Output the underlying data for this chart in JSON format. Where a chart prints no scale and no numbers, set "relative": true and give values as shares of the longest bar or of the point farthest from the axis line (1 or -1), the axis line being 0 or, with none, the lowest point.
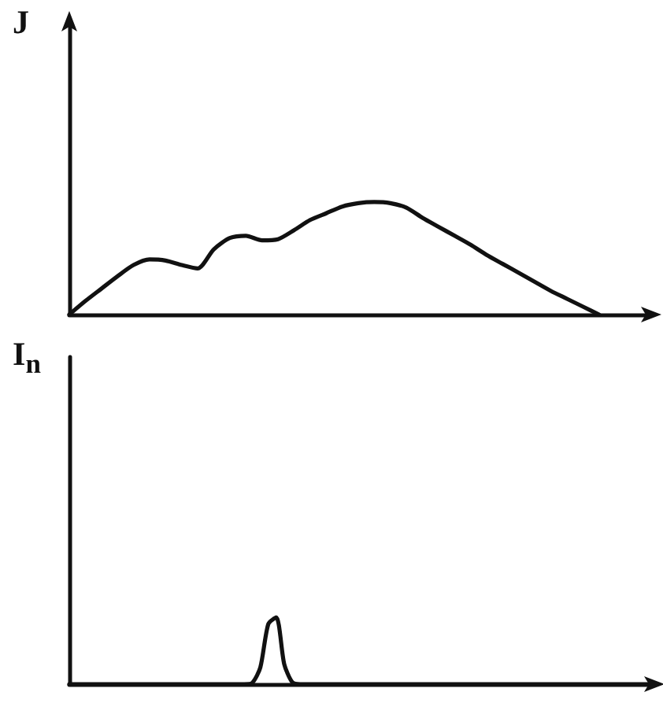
{
  "chart_data": [
    {
      "type": "line",
      "ylabel": "J",
      "relative": true,
      "categories": [
        null,
        null,
        null,
        null,
        null,
        null,
        null,
        null,
        null,
        null,
        null,
        null,
        null,
        null,
        null,
        null,
        null,
        null,
        null,
        null,
        null,
        null,
        null,
        null,
        null,
        null,
        null,
        null,
        null,
        null,
        null,
        null,
        null,
        null,
        null,
        null,
        null
      ],
      "series": [
        {
          "color": "#111111",
          "values": [
            0,
            0.12,
            0.23,
            0.34,
            0.44,
            0.49,
            0.48,
            0.44,
            0.41,
            0.58,
            0.68,
            0.7,
            0.66,
            0.67,
            0.75,
            0.84,
            0.9,
            0.96,
            0.99,
            1,
            0.99,
            0.95,
            0.86,
            0.78,
            0.7,
            0.62,
            0.53,
            0.45,
            0.37,
            0.29,
            0.21,
            0.14,
            0.07,
            0,
            null,
            null,
            null
          ]
        }
      ]
    },
    {
      "type": "line",
      "ylabel": "I$_{n}$",
      "relative": true,
      "categories": [
        null,
        null,
        null,
        null,
        null,
        null,
        null,
        null,
        null,
        null,
        null,
        null,
        null,
        null,
        null,
        null,
        null,
        null,
        null,
        null,
        null,
        null,
        null,
        null,
        null,
        null,
        null,
        null,
        null,
        null,
        null,
        null,
        null,
        null,
        null,
        null,
        null,
        null,
        null,
        null,
        null,
        null,
        null,
        null,
        null,
        null,
        null,
        null,
        null,
        null,
        null,
        null,
        null,
        null,
        null,
        null,
        null,
        null,
        null,
        null,
        null,
        null,
        null,
        null,
        null,
        null,
        null,
        null,
        null,
        null,
        null,
        null,
        null,
        null
      ],
      "series": [
        {
          "color": "#111111",
          "values": [
            0,
            0,
            0,
            0,
            0,
            0,
            0,
            0,
            0,
            0,
            0,
            0,
            0,
            0,
            0,
            0,
            0,
            0,
            0,
            0,
            0,
            0,
            0,
            0.02,
            0.25,
            0.9,
            1,
            0.3,
            0.03,
            0,
            0,
            0,
            0,
            0,
            0,
            0,
            0,
            0,
            0,
            0,
            0,
            0,
            0,
            0,
            0,
            0,
            0,
            0,
            0,
            0,
            0,
            0,
            0,
            0,
            0,
            0,
            0,
            0,
            0,
            0,
            0,
            0,
            0,
            0,
            0,
            0,
            0,
            0,
            0,
            0,
            0,
            0,
            0,
            0
          ]
        }
      ]
    }
  ]
}
